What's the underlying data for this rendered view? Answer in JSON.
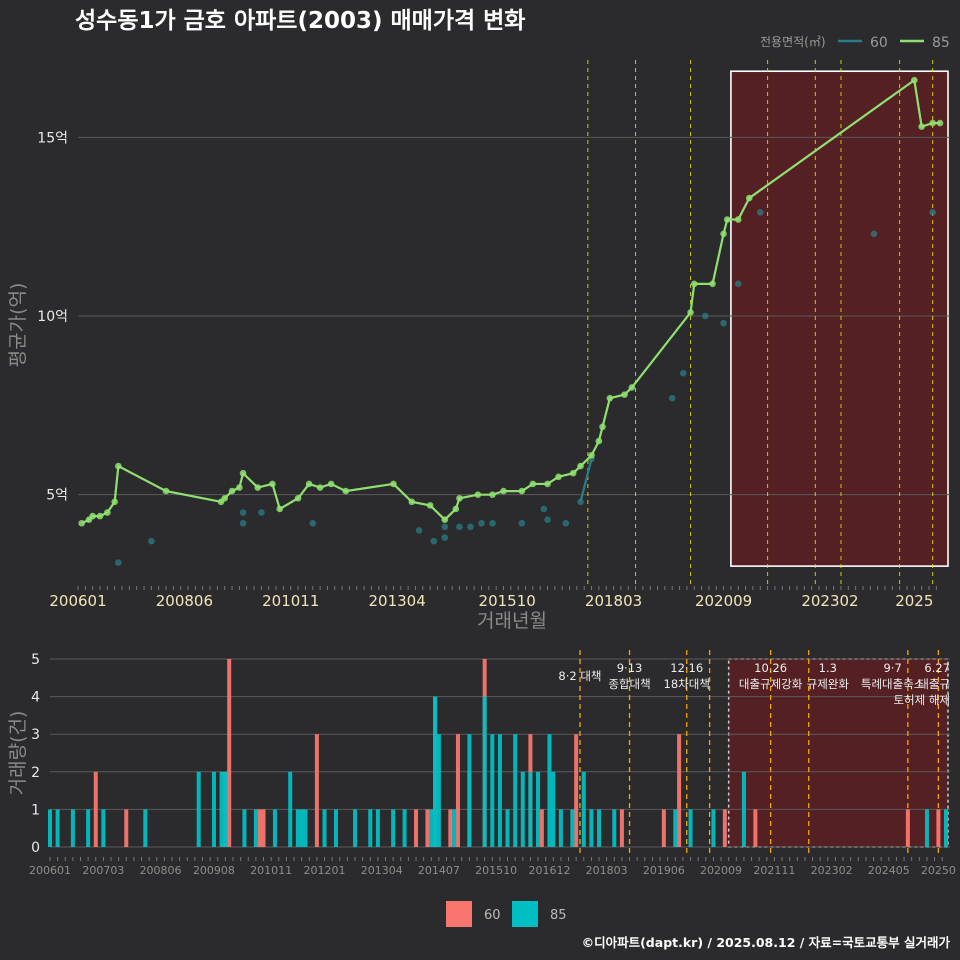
{
  "title": "성수동1가 금호 아파트(2003) 매매가격 변화",
  "caption": "©디아파트(dapt.kr) / 2025.08.12 / 자료=국토교통부 실거래가",
  "colors": {
    "background": "#2b2b2d",
    "line_60": "#2a7d86",
    "line_85": "#8fe070",
    "bar_60": "#f8766d",
    "bar_85": "#00bfc4",
    "policy_line_top": "#e6e600",
    "policy_line_bottom": "#f5a800",
    "highlight_fill": "#5c1f22",
    "highlight_border": "#ffffff"
  },
  "chart_data": [
    {
      "type": "line",
      "name": "price",
      "xlabel": "거래년월",
      "ylabel": "평균가(억)",
      "ylim": [
        2.5,
        17.5
      ],
      "x_range": [
        "2006-01",
        "2025-08"
      ],
      "x_ticks": [
        "200601",
        "200806",
        "201011",
        "201304",
        "201510",
        "201803",
        "202009",
        "202302",
        "2025"
      ],
      "y_ticks": [
        5,
        10,
        15
      ],
      "y_tick_labels": [
        "5억",
        "10억",
        "15억"
      ],
      "grid": true,
      "legend_title": "전용면적(㎡)",
      "legend_position": "top-right",
      "series": [
        {
          "name": "60",
          "points": [
            [
              "2006-12",
              3.1
            ],
            [
              "2007-09",
              3.7
            ],
            [
              "2009-10",
              4.5
            ],
            [
              "2009-10",
              4.2
            ],
            [
              "2010-03",
              4.5
            ],
            [
              "2011-05",
              4.2
            ],
            [
              "2013-10",
              4.0
            ],
            [
              "2014-02",
              3.7
            ],
            [
              "2014-05",
              3.8
            ],
            [
              "2014-05",
              4.1
            ],
            [
              "2014-09",
              4.1
            ],
            [
              "2014-12",
              4.1
            ],
            [
              "2015-03",
              4.2
            ],
            [
              "2015-06",
              4.2
            ],
            [
              "2016-02",
              4.2
            ],
            [
              "2016-08",
              4.6
            ],
            [
              "2016-09",
              4.3
            ],
            [
              "2017-02",
              4.2
            ],
            [
              "2017-06",
              4.8
            ],
            [
              "2017-09",
              6.0
            ],
            [
              "2019-07",
              7.7
            ],
            [
              "2019-10",
              8.4
            ],
            [
              "2020-04",
              10.0
            ],
            [
              "2020-09",
              9.8
            ],
            [
              "2021-01",
              10.9
            ],
            [
              "2021-07",
              12.9
            ],
            [
              "2024-02",
              12.3
            ],
            [
              "2025-06",
              12.9
            ]
          ]
        },
        {
          "name": "85",
          "points": [
            [
              "2006-02",
              4.2
            ],
            [
              "2006-04",
              4.3
            ],
            [
              "2006-05",
              4.4
            ],
            [
              "2006-07",
              4.4
            ],
            [
              "2006-09",
              4.5
            ],
            [
              "2006-11",
              4.8
            ],
            [
              "2006-12",
              5.8
            ],
            [
              "2008-01",
              5.1
            ],
            [
              "2009-04",
              4.8
            ],
            [
              "2009-05",
              4.9
            ],
            [
              "2009-07",
              5.1
            ],
            [
              "2009-09",
              5.2
            ],
            [
              "2009-10",
              5.6
            ],
            [
              "2010-02",
              5.2
            ],
            [
              "2010-06",
              5.3
            ],
            [
              "2010-08",
              4.6
            ],
            [
              "2011-01",
              4.9
            ],
            [
              "2011-04",
              5.3
            ],
            [
              "2011-07",
              5.2
            ],
            [
              "2011-10",
              5.3
            ],
            [
              "2012-02",
              5.1
            ],
            [
              "2013-03",
              5.3
            ],
            [
              "2013-08",
              4.8
            ],
            [
              "2014-01",
              4.7
            ],
            [
              "2014-05",
              4.3
            ],
            [
              "2014-08",
              4.6
            ],
            [
              "2014-09",
              4.9
            ],
            [
              "2015-02",
              5.0
            ],
            [
              "2015-06",
              5.0
            ],
            [
              "2015-09",
              5.1
            ],
            [
              "2016-02",
              5.1
            ],
            [
              "2016-05",
              5.3
            ],
            [
              "2016-09",
              5.3
            ],
            [
              "2016-12",
              5.5
            ],
            [
              "2017-04",
              5.6
            ],
            [
              "2017-06",
              5.8
            ],
            [
              "2017-09",
              6.1
            ],
            [
              "2017-11",
              6.5
            ],
            [
              "2017-12",
              6.9
            ],
            [
              "2018-02",
              7.7
            ],
            [
              "2018-06",
              7.8
            ],
            [
              "2018-08",
              8.0
            ],
            [
              "2019-12",
              10.1
            ],
            [
              "2020-01",
              10.9
            ],
            [
              "2020-06",
              10.9
            ],
            [
              "2020-09",
              12.3
            ],
            [
              "2020-10",
              12.7
            ],
            [
              "2021-01",
              12.7
            ],
            [
              "2021-04",
              13.3
            ],
            [
              "2025-01",
              16.6
            ],
            [
              "2025-03",
              15.3
            ],
            [
              "2025-06",
              15.4
            ],
            [
              "2025-08",
              15.4
            ]
          ]
        }
      ],
      "highlight_range": [
        "2020-11",
        "2025-08"
      ],
      "policy_dates": [
        "2017-08",
        "2018-09",
        "2019-12",
        "2021-09",
        "2022-10",
        "2023-05",
        "2024-09",
        "2025-06"
      ]
    },
    {
      "type": "bar",
      "name": "volume",
      "xlabel": "",
      "ylabel": "거래량(건)",
      "ylim": [
        0,
        5
      ],
      "x_ticks": [
        "200601",
        "200703",
        "200806",
        "200908",
        "201011",
        "201201",
        "201304",
        "201407",
        "201510",
        "201612",
        "201803",
        "201906",
        "202009",
        "202111",
        "202302",
        "202405",
        "202506"
      ],
      "x_tick_labels": [
        "200601",
        "200703",
        "200806",
        "200908",
        "201011",
        "201201",
        "201304",
        "201407",
        "201510",
        "201612",
        "201803",
        "201906",
        "202009",
        "202111",
        "202302",
        "202405",
        "20250"
      ],
      "y_ticks": [
        0,
        1,
        2,
        3,
        4,
        5
      ],
      "legend_position": "bottom",
      "series": [
        {
          "name": "60",
          "bars": [
            [
              "2007-01",
              2
            ],
            [
              "2007-09",
              1
            ],
            [
              "2009-12",
              5
            ],
            [
              "2009-11",
              2
            ],
            [
              "2010-08",
              1
            ],
            [
              "2010-09",
              1
            ],
            [
              "2011-11",
              3
            ],
            [
              "2014-01",
              1
            ],
            [
              "2014-04",
              1
            ],
            [
              "2014-06",
              4
            ],
            [
              "2014-10",
              1
            ],
            [
              "2014-12",
              3
            ],
            [
              "2015-03",
              2
            ],
            [
              "2015-07",
              5
            ],
            [
              "2016-07",
              3
            ],
            [
              "2016-10",
              1
            ],
            [
              "2017-07",
              3
            ],
            [
              "2018-07",
              1
            ],
            [
              "2019-06",
              1
            ],
            [
              "2019-10",
              3
            ],
            [
              "2020-10",
              1
            ],
            [
              "2021-06",
              1
            ],
            [
              "2024-10",
              1
            ],
            [
              "2025-06",
              1
            ]
          ]
        },
        {
          "name": "85",
          "bars": [
            [
              "2006-01",
              1
            ],
            [
              "2006-03",
              1
            ],
            [
              "2006-07",
              1
            ],
            [
              "2006-11",
              1
            ],
            [
              "2007-03",
              1
            ],
            [
              "2008-02",
              1
            ],
            [
              "2009-04",
              2
            ],
            [
              "2009-08",
              2
            ],
            [
              "2009-10",
              2
            ],
            [
              "2009-11",
              2
            ],
            [
              "2010-04",
              1
            ],
            [
              "2010-07",
              1
            ],
            [
              "2010-12",
              1
            ],
            [
              "2011-04",
              2
            ],
            [
              "2011-06",
              1
            ],
            [
              "2011-07",
              1
            ],
            [
              "2011-08",
              1
            ],
            [
              "2012-01",
              1
            ],
            [
              "2012-04",
              1
            ],
            [
              "2012-09",
              1
            ],
            [
              "2013-01",
              1
            ],
            [
              "2013-03",
              1
            ],
            [
              "2013-07",
              1
            ],
            [
              "2013-10",
              1
            ],
            [
              "2014-05",
              1
            ],
            [
              "2014-06",
              4
            ],
            [
              "2014-07",
              3
            ],
            [
              "2014-11",
              1
            ],
            [
              "2015-03",
              3
            ],
            [
              "2015-07",
              4
            ],
            [
              "2015-09",
              3
            ],
            [
              "2015-11",
              3
            ],
            [
              "2016-01",
              1
            ],
            [
              "2016-03",
              3
            ],
            [
              "2016-05",
              2
            ],
            [
              "2016-07",
              2
            ],
            [
              "2016-09",
              2
            ],
            [
              "2016-12",
              3
            ],
            [
              "2017-01",
              2
            ],
            [
              "2017-03",
              1
            ],
            [
              "2017-06",
              1
            ],
            [
              "2017-09",
              2
            ],
            [
              "2017-11",
              1
            ],
            [
              "2018-01",
              1
            ],
            [
              "2018-05",
              1
            ],
            [
              "2019-09",
              1
            ],
            [
              "2020-01",
              1
            ],
            [
              "2020-07",
              1
            ],
            [
              "2021-03",
              2
            ],
            [
              "2025-03",
              1
            ],
            [
              "2025-08",
              1
            ]
          ]
        }
      ],
      "highlight_range": [
        "2020-11",
        "2025-08"
      ],
      "policy_dates": [
        "2017-08",
        "2018-09",
        "2019-12",
        "2020-06",
        "2021-10",
        "2022-08",
        "2024-10",
        "2025-06"
      ],
      "annotations": [
        {
          "date": "2017-08",
          "lines": [
            "8·2 대책"
          ]
        },
        {
          "date": "2018-09",
          "lines": [
            "9·13",
            "종합대책"
          ]
        },
        {
          "date": "2019-12",
          "lines": [
            "12·16",
            "18차대책"
          ]
        },
        {
          "date": "2021-10",
          "lines": [
            "10.26",
            "대출규제강화"
          ]
        },
        {
          "date": "2023-01",
          "lines": [
            "1.3",
            "규제완화"
          ]
        },
        {
          "date": "2024-06",
          "lines": [
            "9·7",
            "특례대출축소"
          ]
        },
        {
          "date": "2025-06",
          "lines": [
            "6.27",
            "대출규",
            "토허제 해제"
          ]
        }
      ]
    }
  ]
}
